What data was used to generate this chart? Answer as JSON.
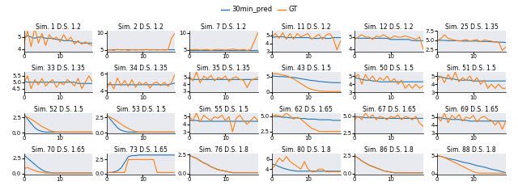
{
  "legend_labels": [
    "30min_pred",
    "GT"
  ],
  "blue_color": "#1f77b4",
  "orange_color": "#ff7f0e",
  "bg_color": "#e8eaf0",
  "title_fontsize": 5.5,
  "tick_fontsize": 5.0,
  "line_width": 0.8,
  "nrows": 4,
  "ncols": 6,
  "subplots": [
    {
      "title": "Sim. 1 D.S. 1.2",
      "blue": [
        5.0,
        5.1,
        5.0,
        4.9,
        5.0,
        5.0,
        4.9,
        4.9,
        4.9,
        4.8,
        4.8,
        4.7,
        4.7,
        4.7,
        4.6,
        4.6,
        4.5,
        4.5,
        4.5,
        4.5
      ],
      "orange": [
        4.5,
        5.5,
        4.2,
        5.8,
        4.5,
        5.3,
        4.3,
        5.2,
        4.8,
        5.0,
        4.6,
        5.2,
        4.7,
        5.0,
        4.4,
        4.7,
        4.4,
        4.6,
        4.4,
        4.3
      ],
      "ylim": [
        3.8,
        5.5
      ]
    },
    {
      "title": "Sim. 2 D.S. 1.2",
      "blue": [
        4.9,
        5.0,
        5.0,
        5.0,
        5.0,
        5.0,
        5.0,
        5.0,
        5.0,
        5.0,
        5.0,
        5.0,
        5.0,
        5.0,
        5.0,
        5.0,
        5.0,
        5.0,
        5.0,
        5.0
      ],
      "orange": [
        4.9,
        5.0,
        4.8,
        5.1,
        4.9,
        5.0,
        4.8,
        5.0,
        4.9,
        5.0,
        4.9,
        5.1,
        4.9,
        5.0,
        4.9,
        5.0,
        4.9,
        5.0,
        8.5,
        10.0
      ],
      "ylim": [
        4.5,
        10.5
      ]
    },
    {
      "title": "Sim. 7 D.S. 1.2",
      "blue": [
        5.0,
        5.0,
        5.0,
        5.0,
        5.0,
        5.0,
        5.0,
        5.0,
        5.0,
        5.0,
        5.0,
        5.0,
        5.0,
        5.0,
        5.0,
        5.0,
        5.0,
        5.0,
        5.0,
        5.0
      ],
      "orange": [
        5.0,
        5.0,
        5.1,
        4.9,
        5.0,
        5.1,
        4.8,
        5.0,
        5.1,
        5.0,
        4.9,
        5.0,
        5.2,
        5.0,
        4.9,
        5.1,
        4.8,
        5.0,
        7.5,
        10.0
      ],
      "ylim": [
        4.5,
        10.5
      ]
    },
    {
      "title": "Sim. 11 D.S. 1.2",
      "blue": [
        4.7,
        4.8,
        4.8,
        4.8,
        4.7,
        4.7,
        4.7,
        4.7,
        4.7,
        4.7,
        4.7,
        4.6,
        4.6,
        4.6,
        4.7,
        4.6,
        4.6,
        4.7,
        4.7,
        4.7
      ],
      "orange": [
        4.8,
        5.2,
        4.6,
        5.3,
        4.5,
        5.2,
        4.5,
        5.2,
        4.8,
        5.0,
        5.2,
        4.5,
        4.8,
        5.1,
        4.5,
        5.0,
        5.2,
        4.6,
        3.2,
        4.3
      ],
      "ylim": [
        3.0,
        5.5
      ]
    },
    {
      "title": "Sim. 12 D.S. 1.2",
      "blue": [
        4.9,
        4.9,
        4.9,
        4.9,
        4.9,
        4.9,
        4.9,
        4.9,
        4.9,
        4.9,
        4.8,
        4.8,
        4.8,
        4.8,
        4.8,
        4.8,
        4.7,
        4.7,
        4.7,
        4.7
      ],
      "orange": [
        4.8,
        5.0,
        5.2,
        5.0,
        5.0,
        4.8,
        5.1,
        5.0,
        5.2,
        5.0,
        4.9,
        5.1,
        5.0,
        5.0,
        5.1,
        5.0,
        4.9,
        4.8,
        5.0,
        4.0
      ],
      "ylim": [
        3.8,
        5.5
      ]
    },
    {
      "title": "Sim. 25 D.S. 1.35",
      "blue": [
        5.0,
        5.0,
        5.0,
        4.9,
        4.9,
        4.9,
        4.9,
        4.8,
        4.8,
        4.8,
        4.8,
        4.8,
        4.7,
        4.7,
        4.7,
        4.6,
        4.6,
        4.5,
        4.5,
        4.4
      ],
      "orange": [
        5.0,
        5.5,
        6.5,
        5.5,
        5.3,
        5.0,
        4.8,
        5.0,
        5.2,
        4.8,
        5.0,
        5.2,
        4.6,
        5.1,
        4.9,
        4.8,
        4.5,
        4.5,
        2.3,
        3.2
      ],
      "ylim": [
        2.0,
        7.5
      ]
    },
    {
      "title": "Sim. 33 D.S. 1.35",
      "blue": [
        5.1,
        5.0,
        5.0,
        5.0,
        5.0,
        5.0,
        5.0,
        5.0,
        5.0,
        5.0,
        5.0,
        5.0,
        5.0,
        5.0,
        5.0,
        4.9,
        4.9,
        4.9,
        4.9,
        4.9
      ],
      "orange": [
        5.0,
        5.5,
        4.5,
        5.2,
        4.8,
        5.3,
        4.7,
        5.0,
        5.2,
        4.6,
        5.0,
        4.8,
        5.2,
        5.0,
        4.7,
        5.3,
        4.5,
        5.0,
        5.5,
        5.0
      ],
      "ylim": [
        4.2,
        5.8
      ]
    },
    {
      "title": "Sim. 34 D.S. 1.35",
      "blue": [
        4.8,
        4.7,
        4.7,
        4.7,
        4.7,
        4.7,
        4.7,
        4.7,
        4.7,
        4.7,
        4.7,
        4.7,
        4.7,
        4.7,
        4.7,
        4.7,
        4.7,
        4.7,
        4.8,
        4.9
      ],
      "orange": [
        4.3,
        5.0,
        4.2,
        5.5,
        4.6,
        5.2,
        4.5,
        5.3,
        4.4,
        5.0,
        4.7,
        5.0,
        4.3,
        4.9,
        5.0,
        4.6,
        5.0,
        4.5,
        5.0,
        6.0
      ],
      "ylim": [
        3.8,
        6.2
      ]
    },
    {
      "title": "Sim. 35 D.S. 1.35",
      "blue": [
        4.8,
        4.7,
        4.7,
        4.7,
        4.7,
        4.7,
        4.7,
        4.7,
        4.7,
        4.7,
        4.7,
        4.7,
        4.7,
        4.7,
        4.7,
        4.7,
        4.7,
        4.7,
        4.7,
        4.7
      ],
      "orange": [
        5.2,
        4.5,
        5.8,
        4.2,
        5.2,
        4.8,
        5.3,
        4.5,
        5.0,
        4.8,
        5.2,
        4.4,
        4.9,
        5.1,
        4.7,
        4.6,
        3.5,
        4.5,
        4.8,
        5.0
      ],
      "ylim": [
        2.8,
        5.8
      ]
    },
    {
      "title": "Sim. 43 D.S. 1.5",
      "blue": [
        5.2,
        5.1,
        5.0,
        5.0,
        4.9,
        4.8,
        4.7,
        4.5,
        4.3,
        4.1,
        3.9,
        3.7,
        3.6,
        3.4,
        3.3,
        3.2,
        3.1,
        3.0,
        3.0,
        3.0
      ],
      "orange": [
        5.8,
        6.0,
        5.8,
        5.5,
        5.3,
        4.8,
        4.2,
        3.5,
        2.7,
        2.0,
        1.2,
        0.8,
        0.5,
        0.3,
        0.2,
        0.1,
        0.1,
        0.1,
        0.1,
        0.1
      ],
      "ylim": [
        -0.2,
        6.5
      ]
    },
    {
      "title": "Sim. 50 D.S. 1.5",
      "blue": [
        4.8,
        4.7,
        4.6,
        4.5,
        4.5,
        4.4,
        4.4,
        4.3,
        4.3,
        4.3,
        4.3,
        4.3,
        4.3,
        4.3,
        4.3,
        4.3,
        4.3,
        4.3,
        4.3,
        4.3
      ],
      "orange": [
        4.8,
        5.2,
        4.0,
        5.2,
        4.5,
        5.0,
        4.3,
        4.8,
        4.5,
        5.0,
        4.3,
        4.7,
        4.0,
        4.5,
        3.5,
        4.0,
        3.5,
        4.0,
        3.5,
        3.8
      ],
      "ylim": [
        3.0,
        5.5
      ]
    },
    {
      "title": "Sim. 51 D.S. 1.5",
      "blue": [
        5.0,
        4.9,
        4.8,
        4.7,
        4.7,
        4.6,
        4.5,
        4.5,
        4.5,
        4.5,
        4.4,
        4.4,
        4.4,
        4.4,
        4.4,
        4.4,
        4.4,
        4.4,
        4.4,
        4.4
      ],
      "orange": [
        4.5,
        5.0,
        4.2,
        5.2,
        4.5,
        5.5,
        4.3,
        4.8,
        4.5,
        5.0,
        4.3,
        4.8,
        4.0,
        4.5,
        3.5,
        4.0,
        3.5,
        4.0,
        3.5,
        3.5
      ],
      "ylim": [
        3.0,
        5.5
      ]
    },
    {
      "title": "Sim. 52 D.S. 1.5",
      "blue": [
        3.0,
        2.2,
        1.5,
        0.8,
        0.4,
        0.2,
        0.1,
        0.1,
        0.1,
        0.1,
        0.1,
        0.1,
        0.1,
        0.1,
        0.1,
        0.1,
        0.1,
        0.1,
        0.1,
        0.1
      ],
      "orange": [
        2.8,
        2.5,
        2.2,
        1.8,
        1.4,
        1.0,
        0.7,
        0.4,
        0.2,
        0.1,
        0.1,
        0.1,
        0.1,
        0.1,
        0.1,
        0.1,
        0.1,
        0.1,
        0.1,
        0.1
      ],
      "ylim": [
        -0.1,
        3.2
      ]
    },
    {
      "title": "Sim. 53 D.S. 1.5",
      "blue": [
        3.0,
        2.2,
        1.5,
        0.8,
        0.4,
        0.2,
        0.1,
        0.1,
        0.1,
        0.1,
        0.1,
        0.1,
        0.1,
        0.1,
        0.1,
        0.1,
        0.1,
        0.1,
        0.1,
        0.1
      ],
      "orange": [
        2.8,
        2.5,
        2.2,
        1.8,
        1.4,
        1.0,
        0.7,
        0.4,
        0.2,
        0.1,
        0.1,
        0.1,
        0.1,
        0.1,
        0.1,
        0.1,
        0.1,
        0.1,
        0.1,
        0.1
      ],
      "ylim": [
        -0.1,
        3.2
      ]
    },
    {
      "title": "Sim. 55 D.S. 1.5",
      "blue": [
        4.5,
        4.5,
        4.5,
        4.4,
        4.4,
        4.4,
        4.4,
        4.4,
        4.4,
        4.4,
        4.4,
        4.4,
        4.4,
        4.4,
        4.4,
        4.4,
        4.4,
        4.4,
        4.4,
        4.4
      ],
      "orange": [
        5.0,
        4.5,
        5.5,
        4.3,
        5.2,
        4.8,
        4.5,
        5.0,
        4.8,
        5.2,
        4.5,
        5.0,
        3.0,
        4.8,
        5.2,
        4.5,
        4.0,
        4.5,
        5.0,
        4.5
      ],
      "ylim": [
        2.8,
        5.5
      ]
    },
    {
      "title": "Sim. 62 D.S. 1.65",
      "blue": [
        5.0,
        4.9,
        4.9,
        4.8,
        4.8,
        4.7,
        4.7,
        4.7,
        4.6,
        4.6,
        4.5,
        4.5,
        4.5,
        4.4,
        4.4,
        4.4,
        4.4,
        4.3,
        4.3,
        4.3
      ],
      "orange": [
        4.8,
        5.2,
        5.0,
        4.9,
        5.5,
        5.0,
        4.5,
        4.8,
        4.5,
        4.0,
        3.5,
        3.0,
        2.8,
        2.5,
        2.5,
        2.5,
        2.5,
        2.5,
        2.5,
        2.5
      ],
      "ylim": [
        2.2,
        5.5
      ]
    },
    {
      "title": "Sim. 67 D.S. 1.65",
      "blue": [
        5.0,
        4.9,
        4.9,
        4.8,
        4.8,
        4.8,
        4.8,
        4.7,
        4.7,
        4.7,
        4.7,
        4.7,
        4.7,
        4.7,
        4.7,
        4.7,
        4.7,
        4.7,
        4.7,
        4.7
      ],
      "orange": [
        4.5,
        5.0,
        4.5,
        5.5,
        4.8,
        5.2,
        4.5,
        5.0,
        4.8,
        4.5,
        5.0,
        4.8,
        5.2,
        4.5,
        5.0,
        4.8,
        4.5,
        5.0,
        4.0,
        3.5
      ],
      "ylim": [
        2.5,
        5.5
      ]
    },
    {
      "title": "Sim. 69 D.S. 1.65",
      "blue": [
        5.0,
        4.9,
        4.8,
        4.8,
        4.7,
        4.7,
        4.7,
        4.6,
        4.6,
        4.5,
        4.5,
        4.5,
        4.5,
        4.5,
        4.5,
        4.5,
        4.5,
        4.5,
        4.5,
        4.5
      ],
      "orange": [
        5.0,
        4.5,
        5.5,
        4.3,
        5.2,
        4.8,
        5.3,
        4.5,
        5.0,
        4.8,
        5.2,
        4.4,
        4.9,
        5.1,
        4.7,
        4.6,
        4.0,
        4.5,
        3.5,
        4.5
      ],
      "ylim": [
        3.0,
        5.5
      ]
    },
    {
      "title": "Sim. 70 D.S. 1.65",
      "blue": [
        3.0,
        2.5,
        2.0,
        1.5,
        1.0,
        0.6,
        0.3,
        0.2,
        0.1,
        0.1,
        0.1,
        0.1,
        0.1,
        0.1,
        0.1,
        0.1,
        0.1,
        0.1,
        0.1,
        0.1
      ],
      "orange": [
        0.8,
        1.0,
        0.7,
        0.5,
        0.3,
        0.2,
        0.1,
        0.1,
        0.1,
        0.1,
        0.1,
        0.1,
        0.1,
        0.1,
        0.1,
        0.1,
        0.1,
        0.1,
        0.1,
        0.1
      ],
      "ylim": [
        -0.1,
        3.2
      ]
    },
    {
      "title": "Sim. 73 D.S. 1.65",
      "blue": [
        0.2,
        0.2,
        0.3,
        0.5,
        1.0,
        2.0,
        3.0,
        3.2,
        3.2,
        3.3,
        3.3,
        3.3,
        3.3,
        3.3,
        3.3,
        3.3,
        3.3,
        3.3,
        3.3,
        3.3
      ],
      "orange": [
        0.2,
        0.2,
        0.2,
        0.2,
        0.2,
        0.2,
        2.5,
        2.5,
        2.5,
        2.5,
        2.5,
        2.5,
        2.5,
        2.5,
        0.2,
        0.2,
        0.2,
        0.2,
        0.2,
        0.2
      ],
      "ylim": [
        -0.1,
        3.5
      ]
    },
    {
      "title": "Sim. 76 D.S. 1.8",
      "blue": [
        2.4,
        2.2,
        2.0,
        1.7,
        1.4,
        1.2,
        0.9,
        0.7,
        0.5,
        0.4,
        0.3,
        0.2,
        0.1,
        0.1,
        0.1,
        0.1,
        0.1,
        0.1,
        0.1,
        0.1
      ],
      "orange": [
        2.4,
        2.2,
        2.0,
        1.7,
        1.4,
        1.2,
        0.9,
        0.7,
        0.5,
        0.4,
        0.3,
        0.2,
        0.1,
        0.1,
        0.1,
        0.1,
        0.1,
        0.1,
        0.1,
        0.1
      ],
      "ylim": [
        -0.1,
        2.6
      ]
    },
    {
      "title": "Sim. 80 D.S. 1.8",
      "blue": [
        5.0,
        4.8,
        4.5,
        4.2,
        4.0,
        3.8,
        3.7,
        3.6,
        3.6,
        3.6,
        3.6,
        3.6,
        3.6,
        3.6,
        3.6,
        3.6,
        3.6,
        3.6,
        3.6,
        3.6
      ],
      "orange": [
        4.0,
        5.0,
        6.2,
        5.5,
        6.5,
        5.5,
        5.0,
        4.5,
        4.0,
        5.5,
        4.0,
        3.5,
        3.5,
        4.0,
        4.0,
        3.5,
        3.5,
        3.5,
        3.5,
        3.5
      ],
      "ylim": [
        3.0,
        7.0
      ]
    },
    {
      "title": "Sim. 86 D.S. 1.8",
      "blue": [
        2.5,
        2.2,
        1.8,
        1.5,
        1.2,
        1.0,
        0.8,
        0.6,
        0.4,
        0.3,
        0.2,
        0.1,
        0.1,
        0.1,
        0.1,
        0.1,
        0.1,
        0.1,
        0.1,
        0.1
      ],
      "orange": [
        2.5,
        2.2,
        1.8,
        1.5,
        1.2,
        1.0,
        0.8,
        0.6,
        0.4,
        0.3,
        0.2,
        0.1,
        0.1,
        0.1,
        0.1,
        0.1,
        0.1,
        0.1,
        0.1,
        0.1
      ],
      "ylim": [
        -0.1,
        2.8
      ]
    },
    {
      "title": "Sim. 88 D.S. 1.8",
      "blue": [
        5.0,
        4.8,
        4.5,
        4.2,
        4.0,
        3.8,
        3.5,
        3.2,
        3.0,
        2.8,
        2.5,
        2.2,
        2.0,
        1.8,
        1.5,
        1.2,
        1.0,
        0.8,
        0.5,
        0.2
      ],
      "orange": [
        5.0,
        4.8,
        4.5,
        4.0,
        3.5,
        3.0,
        2.5,
        2.0,
        1.5,
        1.0,
        0.5,
        0.2,
        0.1,
        0.1,
        0.1,
        0.1,
        0.1,
        0.1,
        0.1,
        0.1
      ],
      "ylim": [
        -0.2,
        5.5
      ]
    }
  ]
}
